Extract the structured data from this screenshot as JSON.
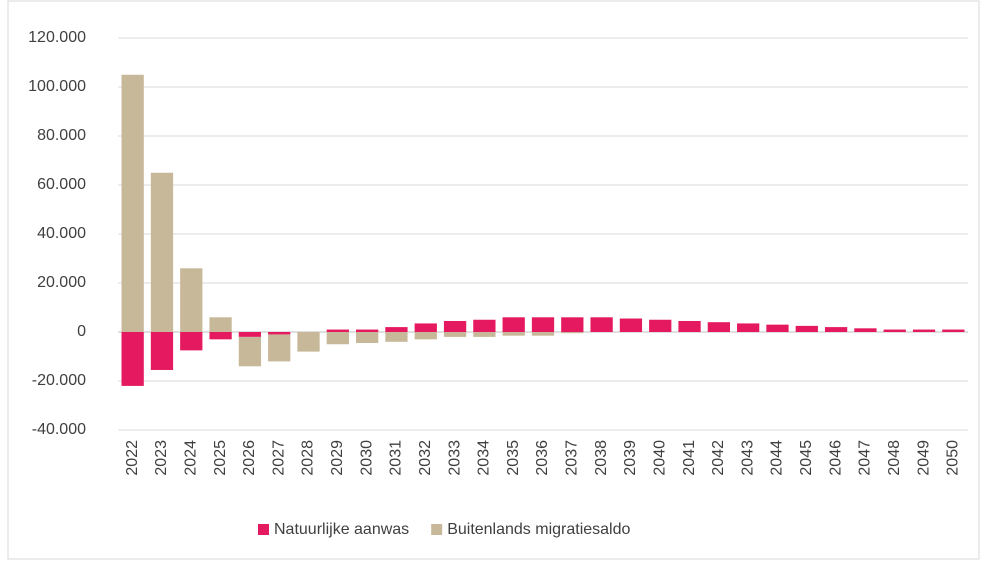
{
  "chart_data": {
    "type": "bar",
    "stacked": true,
    "categories": [
      "2022",
      "2023",
      "2024",
      "2025",
      "2026",
      "2027",
      "2028",
      "2029",
      "2030",
      "2031",
      "2032",
      "2033",
      "2034",
      "2035",
      "2036",
      "2037",
      "2038",
      "2039",
      "2040",
      "2041",
      "2042",
      "2043",
      "2044",
      "2045",
      "2046",
      "2047",
      "2048",
      "2049",
      "2050"
    ],
    "series": [
      {
        "name": "Natuurlijke aanwas",
        "color": "#e5195f",
        "values": [
          -22000,
          -15500,
          -7500,
          -3000,
          -2000,
          -1000,
          0,
          1000,
          1000,
          2000,
          3500,
          4500,
          5000,
          6000,
          6000,
          6000,
          6000,
          5500,
          5000,
          4500,
          4000,
          3500,
          3000,
          2500,
          2000,
          1500,
          1000,
          1000,
          1000
        ]
      },
      {
        "name": "Buitenlands migratiesaldo",
        "color": "#c8b89a",
        "values": [
          105000,
          65000,
          26000,
          6000,
          -12000,
          -11000,
          -8000,
          -5000,
          -4500,
          -4000,
          -3000,
          -2000,
          -2000,
          -1500,
          -1500,
          -500,
          0,
          0,
          0,
          0,
          0,
          0,
          0,
          0,
          0,
          0,
          0,
          0,
          0
        ]
      }
    ],
    "ylim": [
      -40000,
      120000
    ],
    "yticks": [
      {
        "value": -40000,
        "label": "-40.000"
      },
      {
        "value": -20000,
        "label": "-20.000"
      },
      0,
      {
        "value": 20000,
        "label": "20.000"
      },
      {
        "value": 40000,
        "label": "40.000"
      },
      {
        "value": 60000,
        "label": "60.000"
      },
      {
        "value": 80000,
        "label": "80.000"
      },
      {
        "value": 100000,
        "label": "100.000"
      },
      {
        "value": 120000,
        "label": "120.000"
      }
    ],
    "grid": true,
    "legend": "bottom"
  }
}
